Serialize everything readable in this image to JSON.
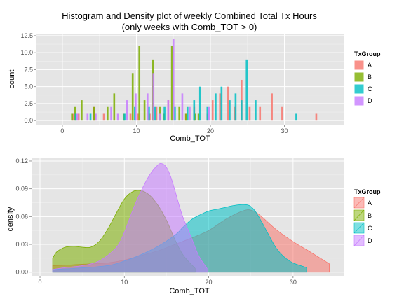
{
  "chart_data": [
    {
      "type": "bar",
      "title": "Histogram and Density plot of weekly Combined Total Tx Hours",
      "subtitle": "(only weeks with Comb_TOT > 0)",
      "xlabel": "Comb_TOT",
      "ylabel": "count",
      "xlim": [
        -3.5,
        38
      ],
      "ylim": [
        -0.6,
        12.8
      ],
      "x_ticks": [
        0,
        10,
        20,
        30
      ],
      "x_tick_labels": [
        "0",
        "10",
        "20",
        "30"
      ],
      "y_ticks": [
        0,
        2.5,
        5,
        7.5,
        10,
        12.5
      ],
      "y_tick_labels": [
        "0.0",
        "2.5",
        "5.0",
        "7.5",
        "10.0",
        "12.5"
      ],
      "grid": true,
      "legend_position": "right",
      "legend_title": "TxGroup",
      "bar_width": 0.25,
      "series": [
        {
          "name": "A",
          "color": "#F8766D",
          "points": [
            [
              1.5,
              1
            ],
            [
              2.2,
              1
            ],
            [
              4.3,
              2
            ],
            [
              5.6,
              1
            ],
            [
              9.2,
              1
            ],
            [
              10.2,
              1
            ],
            [
              11.8,
              1
            ],
            [
              12.7,
              2
            ],
            [
              14.3,
              3
            ],
            [
              16.7,
              1
            ],
            [
              17.8,
              2
            ],
            [
              19.6,
              1
            ],
            [
              20.3,
              3
            ],
            [
              21.3,
              4
            ],
            [
              22.4,
              5
            ],
            [
              23.3,
              2
            ],
            [
              24.2,
              6
            ],
            [
              25.3,
              2
            ],
            [
              26.7,
              2
            ],
            [
              28.3,
              4
            ],
            [
              29.7,
              2
            ],
            [
              34.3,
              1
            ]
          ]
        },
        {
          "name": "B",
          "color": "#7CAE00",
          "points": [
            [
              1.3,
              1
            ],
            [
              1.7,
              2
            ],
            [
              2.6,
              3
            ],
            [
              4.3,
              2
            ],
            [
              6.1,
              2
            ],
            [
              7.0,
              4
            ],
            [
              8.3,
              1
            ],
            [
              9.5,
              7
            ],
            [
              10.4,
              11
            ],
            [
              11.1,
              3
            ],
            [
              12.2,
              9
            ],
            [
              13.2,
              2
            ],
            [
              13.7,
              1
            ],
            [
              14.8,
              11
            ],
            [
              15.8,
              2
            ],
            [
              16.7,
              1
            ],
            [
              17.9,
              1
            ],
            [
              18.4,
              1
            ]
          ]
        },
        {
          "name": "C",
          "color": "#00BFC4",
          "points": [
            [
              1.8,
              1
            ],
            [
              3.8,
              1
            ],
            [
              8.4,
              1
            ],
            [
              9.8,
              2
            ],
            [
              11.7,
              2
            ],
            [
              12.5,
              2
            ],
            [
              13.8,
              2
            ],
            [
              15.2,
              2
            ],
            [
              16.9,
              2
            ],
            [
              17.8,
              3
            ],
            [
              18.6,
              5
            ],
            [
              19.6,
              2
            ],
            [
              20.7,
              4
            ],
            [
              21.5,
              5
            ],
            [
              22.6,
              3
            ],
            [
              23.4,
              4
            ],
            [
              24.2,
              3
            ],
            [
              24.9,
              9
            ],
            [
              26.1,
              3
            ],
            [
              31.6,
              1
            ]
          ]
        },
        {
          "name": "D",
          "color": "#C77CFF",
          "points": [
            [
              2.0,
              1
            ],
            [
              3.4,
              1
            ],
            [
              4.5,
              1
            ],
            [
              6.6,
              2
            ],
            [
              7.5,
              1
            ],
            [
              8.7,
              3
            ],
            [
              9.9,
              4
            ],
            [
              11.5,
              4
            ],
            [
              12.3,
              7
            ],
            [
              13.2,
              1
            ],
            [
              14.3,
              3
            ],
            [
              15.0,
              12
            ],
            [
              16.2,
              4
            ],
            [
              17.2,
              2
            ],
            [
              19.8,
              2
            ]
          ]
        }
      ]
    },
    {
      "type": "area",
      "title": "",
      "xlabel": "Comb_TOT",
      "ylabel": "density",
      "xlim": [
        -1,
        36
      ],
      "ylim": [
        -0.004,
        0.123
      ],
      "x_ticks": [
        0,
        10,
        20,
        30
      ],
      "x_tick_labels": [
        "0",
        "10",
        "20",
        "30"
      ],
      "y_ticks": [
        0,
        0.03,
        0.06,
        0.09,
        0.12
      ],
      "y_tick_labels": [
        "0.00",
        "0.03",
        "0.06",
        "0.09",
        "0.12"
      ],
      "grid": true,
      "legend_position": "right",
      "legend_title": "TxGroup",
      "series": [
        {
          "name": "A",
          "color": "#F8766D",
          "points": [
            [
              1.5,
              0.007
            ],
            [
              4,
              0.008
            ],
            [
              6,
              0.009
            ],
            [
              8,
              0.01
            ],
            [
              10,
              0.013
            ],
            [
              12,
              0.018
            ],
            [
              14,
              0.023
            ],
            [
              16,
              0.03
            ],
            [
              18,
              0.037
            ],
            [
              20,
              0.045
            ],
            [
              22,
              0.057
            ],
            [
              24,
              0.066
            ],
            [
              25,
              0.067
            ],
            [
              26,
              0.062
            ],
            [
              28,
              0.046
            ],
            [
              30,
              0.033
            ],
            [
              32,
              0.022
            ],
            [
              34.3,
              0.009
            ]
          ]
        },
        {
          "name": "B",
          "color": "#7CAE00",
          "points": [
            [
              1.5,
              0.015
            ],
            [
              2,
              0.022
            ],
            [
              3,
              0.027
            ],
            [
              4,
              0.028
            ],
            [
              5,
              0.027
            ],
            [
              6,
              0.027
            ],
            [
              7,
              0.033
            ],
            [
              8,
              0.046
            ],
            [
              9,
              0.063
            ],
            [
              10,
              0.079
            ],
            [
              11,
              0.087
            ],
            [
              12,
              0.088
            ],
            [
              13,
              0.083
            ],
            [
              14,
              0.072
            ],
            [
              15,
              0.056
            ],
            [
              16,
              0.035
            ],
            [
              17,
              0.018
            ],
            [
              18.4,
              0.004
            ]
          ]
        },
        {
          "name": "C",
          "color": "#00BFC4",
          "points": [
            [
              1.5,
              0.003
            ],
            [
              4,
              0.004
            ],
            [
              8,
              0.007
            ],
            [
              10,
              0.012
            ],
            [
              12,
              0.019
            ],
            [
              14,
              0.028
            ],
            [
              16,
              0.04
            ],
            [
              17,
              0.049
            ],
            [
              18,
              0.057
            ],
            [
              19,
              0.062
            ],
            [
              20,
              0.066
            ],
            [
              21,
              0.068
            ],
            [
              22,
              0.07
            ],
            [
              23,
              0.072
            ],
            [
              24,
              0.073
            ],
            [
              24.8,
              0.072
            ],
            [
              25.5,
              0.066
            ],
            [
              26.3,
              0.054
            ],
            [
              27,
              0.042
            ],
            [
              28,
              0.026
            ],
            [
              29,
              0.016
            ],
            [
              30,
              0.01
            ],
            [
              31.6,
              0.005
            ]
          ]
        },
        {
          "name": "D",
          "color": "#C77CFF",
          "points": [
            [
              1.5,
              0.003
            ],
            [
              3,
              0.005
            ],
            [
              5,
              0.007
            ],
            [
              7,
              0.012
            ],
            [
              9,
              0.026
            ],
            [
              10,
              0.043
            ],
            [
              11,
              0.067
            ],
            [
              12,
              0.088
            ],
            [
              13,
              0.105
            ],
            [
              14,
              0.116
            ],
            [
              14.5,
              0.117
            ],
            [
              15,
              0.113
            ],
            [
              15.5,
              0.103
            ],
            [
              16,
              0.088
            ],
            [
              16.5,
              0.072
            ],
            [
              17,
              0.058
            ],
            [
              18,
              0.036
            ],
            [
              18.8,
              0.018
            ],
            [
              19.8,
              0.004
            ]
          ]
        }
      ]
    }
  ]
}
